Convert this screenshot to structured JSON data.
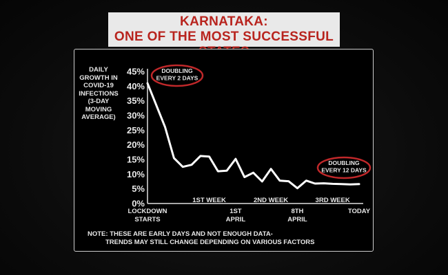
{
  "banner": {
    "line1": "KARNATAKA:",
    "line2": "ONE OF THE MOST SUCCESSFUL STATES"
  },
  "colors": {
    "banner_bg": "#e9e9e9",
    "banner_text": "#b8241e",
    "line": "#ffffff",
    "callout_ring": "#c0282a"
  },
  "chart_data": {
    "type": "line",
    "ylabel": [
      "DAILY",
      "GROWTH IN",
      "COVID-19",
      "INFECTIONS",
      "(3-DAY",
      "MOVING",
      "AVERAGE)"
    ],
    "ylim": [
      0,
      45
    ],
    "y_ticks": [
      "45%",
      "40%",
      "35%",
      "30%",
      "25%",
      "20%",
      "15%",
      "10%",
      "5%",
      "0%"
    ],
    "x_labels": [
      {
        "lines": [
          "LOCKDOWN",
          "STARTS"
        ],
        "day": 0
      },
      {
        "lines": [
          "1ST WEEK"
        ],
        "day": 7
      },
      {
        "lines": [
          "1ST",
          "APRIL"
        ],
        "day": 10
      },
      {
        "lines": [
          "2ND WEEK"
        ],
        "day": 14
      },
      {
        "lines": [
          "8TH",
          "APRIL"
        ],
        "day": 17
      },
      {
        "lines": [
          "3RD WEEK"
        ],
        "day": 21
      },
      {
        "lines": [
          "TODAY"
        ],
        "day": 24
      }
    ],
    "series": [
      {
        "x": [
          0,
          2,
          3,
          4,
          5,
          6,
          7,
          8,
          9,
          10,
          11,
          12,
          13,
          14,
          15,
          16,
          17,
          18,
          19,
          20,
          21,
          22,
          23,
          24
        ],
        "values": [
          41,
          26,
          15.5,
          12.5,
          13.2,
          16.2,
          16,
          11,
          11.2,
          15.2,
          9,
          10.5,
          7.5,
          11.8,
          7.8,
          7.6,
          5.2,
          7.8,
          6.8,
          6.9,
          6.7,
          6.6,
          6.5,
          6.6
        ]
      }
    ],
    "annotations": [
      {
        "lines": [
          "DOUBLING",
          "EVERY 2 DAYS"
        ]
      },
      {
        "lines": [
          "DOUBLING",
          "EVERY 12 DAYS"
        ]
      }
    ],
    "note": [
      "NOTE: THESE ARE EARLY DAYS AND NOT ENOUGH DATA-",
      "TRENDS MAY STILL CHANGE DEPENDING ON VARIOUS FACTORS"
    ],
    "grid": false,
    "legend": "none"
  }
}
